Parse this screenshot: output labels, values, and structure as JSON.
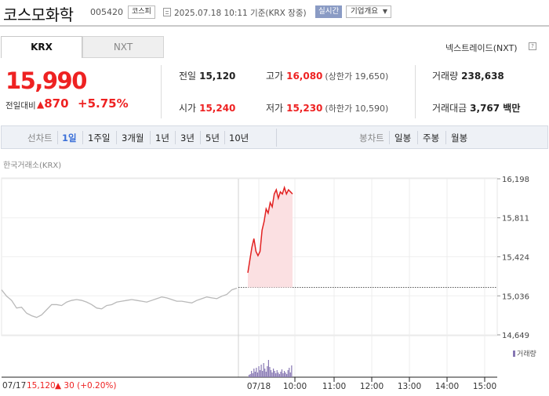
{
  "header": {
    "name": "코스모화학",
    "code": "005420",
    "market": "코스피",
    "timestamp": "2025.07.18 10:11 기준(KRX 장중)",
    "live_badge": "실시간",
    "company_button": "기업개요"
  },
  "tabs": [
    {
      "label": "KRX",
      "active": true
    },
    {
      "label": "NXT",
      "active": false
    }
  ],
  "nxt_link": "넥스트레이드(NXT)",
  "quote": {
    "price": "15,990",
    "change_label": "전일대비",
    "change_amount": "870",
    "change_pct": "+5.75%"
  },
  "stats": {
    "prev_label": "전일",
    "prev_value": "15,120",
    "high_label": "고가",
    "high_value": "16,080",
    "upper_limit": "(상한가 19,650)",
    "volume_label": "거래량",
    "volume_value": "238,638",
    "open_label": "시가",
    "open_value": "15,240",
    "low_label": "저가",
    "low_value": "15,230",
    "lower_limit": "(하한가 10,590)",
    "amount_label": "거래대금",
    "amount_value": "3,767 백만"
  },
  "controls": {
    "line_chart_label": "선차트",
    "periods": [
      "1일",
      "1주일",
      "3개월",
      "1년",
      "3년",
      "5년",
      "10년"
    ],
    "active_period": "1일",
    "candle_label": "봉차트",
    "candles": [
      "일봉",
      "주봉",
      "월봉"
    ]
  },
  "chart": {
    "exchange_label": "한국거래소(KRX)",
    "volume_legend": "거래량",
    "footer_date": "07/17",
    "footer_close": "15,120",
    "footer_change": "30 (+0.20%)"
  },
  "colors": {
    "up": "#e22222",
    "accent": "#3a6fd8",
    "volume": "#8777b3",
    "area_fill": "#fbe0e2"
  },
  "chart_data": {
    "type": "line",
    "y_ticks": [
      "16,198",
      "15,811",
      "15,424",
      "15,036",
      "14,649"
    ],
    "y_tick_values": [
      16198,
      15811,
      15424,
      15036,
      14649
    ],
    "ylim": [
      14649,
      16198
    ],
    "x_ticks": [
      "07/17",
      "07/18",
      "10:00",
      "11:00",
      "12:00",
      "13:00",
      "14:00",
      "15:00"
    ],
    "reference_line": 15120,
    "series": [
      {
        "values": [
          15096,
          15033,
          14991,
          14915,
          14923,
          14864,
          14839,
          14822,
          14847,
          14898,
          14949,
          14949,
          14940,
          14974,
          14991,
          14999,
          14991,
          14974,
          14949,
          14915,
          14907,
          14940,
          14949,
          14974,
          14983,
          14991,
          14999,
          14991,
          14983,
          14974,
          14991,
          15008,
          15025,
          15016,
          14999,
          14983,
          14983,
          14974,
          14966,
          14991,
          15008,
          15025,
          15016,
          15008,
          15033,
          15050,
          15096,
          15112
        ]
      },
      {
        "values": [
          15265,
          15392,
          15519,
          15604,
          15477,
          15435,
          15477,
          15688,
          15773,
          15899,
          15857,
          15962,
          15920,
          16047,
          16089,
          16005,
          16068,
          16047,
          16111,
          16047,
          16089,
          16068,
          16047
        ]
      }
    ],
    "volume": [
      3,
      4,
      8,
      5,
      11,
      7,
      12,
      6,
      14,
      9,
      16,
      8,
      18,
      11,
      7,
      14,
      22,
      13,
      9,
      6,
      11,
      8,
      5,
      9,
      6,
      4,
      7,
      10,
      5,
      8,
      6,
      4,
      9,
      12,
      6,
      15
    ]
  }
}
